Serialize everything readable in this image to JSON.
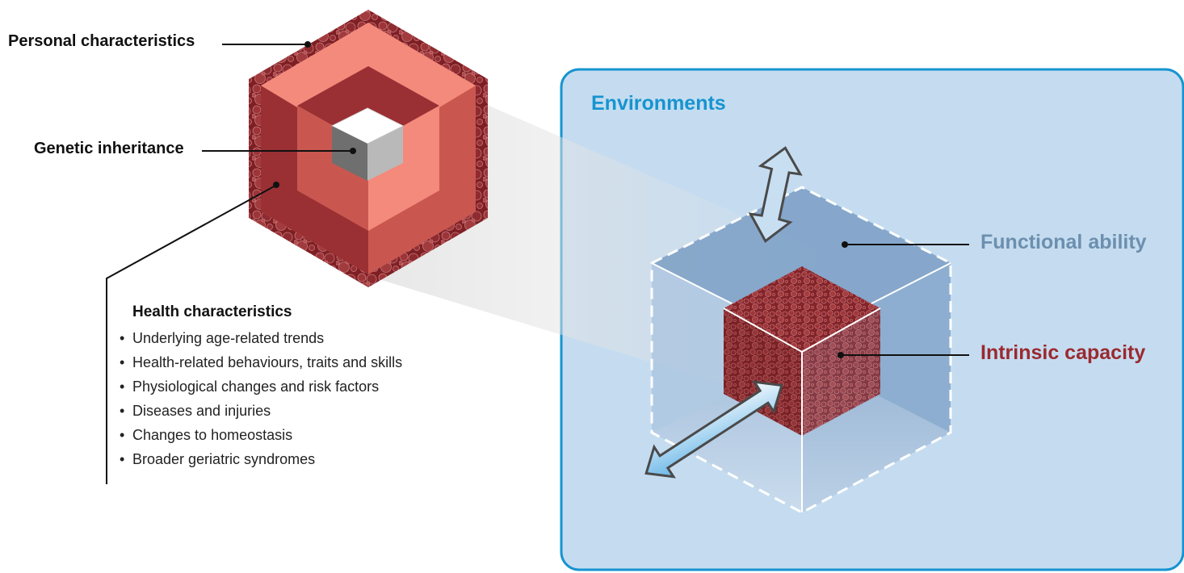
{
  "labels": {
    "personal": "Personal characteristics",
    "genetic": "Genetic inheritance",
    "environments": "Environments",
    "functional": "Functional ability",
    "intrinsic": "Intrinsic capacity"
  },
  "health": {
    "title": "Health characteristics",
    "items": [
      "Underlying age-related trends",
      "Health-related behaviours, traits and skills",
      "Physiological changes and risk factors",
      "Diseases and injuries",
      "Changes to homeostasis",
      "Broader geriatric syndromes"
    ]
  },
  "colors": {
    "environment_fill": "#c5dcf0",
    "environment_border": "#1694d0",
    "functional_text": "#6c8fae",
    "intrinsic_text": "#9a2a2f",
    "cell_texture": "#7e1f24",
    "hex_outer_light": "#f38a7c",
    "hex_outer_dark": "#9a3033",
    "cube_blue": "#6a94bd"
  },
  "icons": [
    "two-way-arrow-vertical-icon",
    "two-way-arrow-diagonal-icon",
    "leader-line"
  ]
}
